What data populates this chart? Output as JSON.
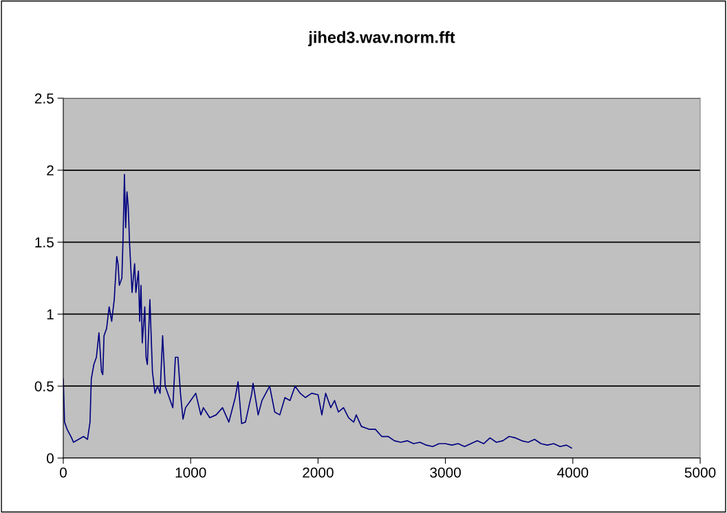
{
  "chart_data": {
    "type": "line",
    "title": "jihed3.wav.norm.fft",
    "x": [
      0,
      10,
      30,
      60,
      80,
      120,
      160,
      190,
      210,
      220,
      240,
      260,
      280,
      300,
      310,
      320,
      340,
      360,
      380,
      400,
      420,
      430,
      440,
      460,
      470,
      480,
      490,
      500,
      510,
      520,
      540,
      550,
      560,
      570,
      590,
      600,
      610,
      620,
      640,
      650,
      660,
      680,
      700,
      720,
      740,
      760,
      780,
      800,
      840,
      860,
      880,
      900,
      920,
      940,
      960,
      1000,
      1040,
      1080,
      1100,
      1150,
      1200,
      1250,
      1300,
      1350,
      1372,
      1400,
      1430,
      1480,
      1490,
      1530,
      1560,
      1620,
      1660,
      1700,
      1740,
      1780,
      1820,
      1860,
      1900,
      1950,
      2000,
      2030,
      2060,
      2100,
      2130,
      2160,
      2200,
      2240,
      2280,
      2300,
      2340,
      2400,
      2450,
      2500,
      2550,
      2600,
      2650,
      2700,
      2750,
      2800,
      2850,
      2900,
      2950,
      3000,
      3050,
      3100,
      3150,
      3200,
      3250,
      3300,
      3350,
      3400,
      3450,
      3500,
      3550,
      3600,
      3650,
      3700,
      3750,
      3800,
      3850,
      3900,
      3950,
      3990
    ],
    "series": [
      {
        "color": "#000080",
        "values": [
          0.55,
          0.25,
          0.2,
          0.15,
          0.11,
          0.13,
          0.15,
          0.13,
          0.25,
          0.55,
          0.65,
          0.7,
          0.87,
          0.6,
          0.58,
          0.85,
          0.9,
          1.05,
          0.95,
          1.1,
          1.4,
          1.35,
          1.2,
          1.25,
          1.55,
          1.97,
          1.6,
          1.85,
          1.75,
          1.5,
          1.15,
          1.25,
          1.35,
          1.15,
          1.3,
          0.95,
          1.2,
          0.8,
          1.05,
          0.7,
          0.65,
          1.1,
          0.6,
          0.45,
          0.5,
          0.45,
          0.85,
          0.5,
          0.4,
          0.35,
          0.7,
          0.7,
          0.45,
          0.27,
          0.35,
          0.4,
          0.45,
          0.3,
          0.35,
          0.28,
          0.3,
          0.35,
          0.25,
          0.42,
          0.53,
          0.24,
          0.25,
          0.45,
          0.52,
          0.3,
          0.4,
          0.5,
          0.32,
          0.3,
          0.42,
          0.4,
          0.5,
          0.45,
          0.42,
          0.45,
          0.44,
          0.3,
          0.45,
          0.35,
          0.4,
          0.32,
          0.35,
          0.28,
          0.25,
          0.3,
          0.22,
          0.2,
          0.2,
          0.15,
          0.15,
          0.12,
          0.11,
          0.12,
          0.1,
          0.11,
          0.09,
          0.08,
          0.1,
          0.1,
          0.09,
          0.1,
          0.08,
          0.1,
          0.12,
          0.1,
          0.14,
          0.11,
          0.12,
          0.15,
          0.14,
          0.12,
          0.11,
          0.13,
          0.1,
          0.09,
          0.1,
          0.08,
          0.09,
          0.07
        ]
      }
    ],
    "xlim": [
      0,
      5000
    ],
    "xticks": [
      0,
      1000,
      2000,
      3000,
      4000,
      5000
    ],
    "ylim": [
      0,
      2.5
    ],
    "yticks": [
      0,
      0.5,
      1,
      1.5,
      2,
      2.5
    ],
    "grid": "y"
  }
}
